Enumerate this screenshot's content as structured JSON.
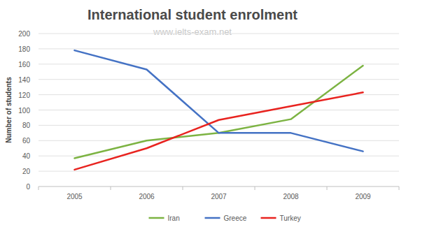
{
  "chart_data": {
    "type": "line",
    "title": "International student enrolment",
    "subtitle": "www.ielts-exam.net",
    "y_label": "Number of students",
    "categories": [
      "2005",
      "2006",
      "2007",
      "2008",
      "2009"
    ],
    "series": [
      {
        "name": "Iran",
        "color": "#7cb342",
        "values": [
          37,
          60,
          70,
          88,
          158
        ]
      },
      {
        "name": "Greece",
        "color": "#4472c4",
        "values": [
          178,
          153,
          70,
          70,
          46
        ]
      },
      {
        "name": "Turkey",
        "color": "#e8231f",
        "values": [
          22,
          50,
          87,
          105,
          123
        ]
      }
    ],
    "ylim": [
      0,
      200
    ],
    "yticks": [
      0,
      20,
      40,
      60,
      80,
      100,
      120,
      140,
      160,
      180,
      200
    ],
    "grid": true,
    "legend": "bottom"
  }
}
